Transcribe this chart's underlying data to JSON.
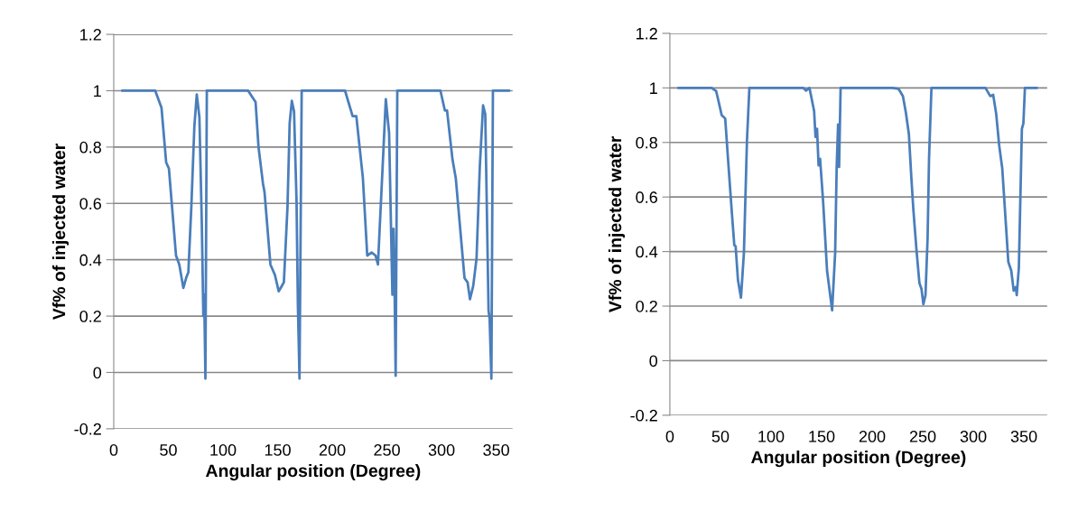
{
  "chart_data": [
    {
      "type": "line",
      "xlabel": "Angular position (Degree)",
      "ylabel": "Vf% of injected water",
      "xlim": [
        0,
        365
      ],
      "xticks": [
        0,
        50,
        100,
        150,
        200,
        250,
        300,
        350
      ],
      "ylim": [
        -0.2,
        1.2
      ],
      "yticks": [
        -0.2,
        0,
        0.2,
        0.4,
        0.6,
        0.8,
        1,
        1.2
      ],
      "grid": "y",
      "legend": false,
      "series": [
        {
          "color": "#4a7ebb",
          "x": [
            8,
            38,
            43.7,
            48,
            50.5,
            57,
            60,
            63.7,
            66.4,
            68.3,
            71,
            73.8,
            76,
            78.4,
            80.6,
            82,
            82.8,
            83.9,
            85.2,
            123,
            129.8,
            132.5,
            136.6,
            138,
            143.4,
            147.5,
            151,
            153.8,
            155.7,
            159,
            161,
            163,
            165,
            167.3,
            168.5,
            170,
            172,
            211.7,
            218.6,
            222,
            228,
            232,
            236,
            239.6,
            241.8,
            246,
            249,
            252,
            255,
            256,
            257,
            258,
            259.5,
            299,
            303,
            305,
            310,
            313,
            321,
            323.8,
            326,
            329,
            332,
            335,
            338,
            340,
            343,
            344,
            345.6,
            347,
            361.5
          ],
          "values": [
            1,
            1,
            0.94,
            0.745,
            0.724,
            0.415,
            0.383,
            0.3,
            0.337,
            0.356,
            0.586,
            0.874,
            0.987,
            0.906,
            0.53,
            0.2,
            0.276,
            -0.022,
            1,
            1,
            0.96,
            0.8,
            0.67,
            0.64,
            0.383,
            0.346,
            0.288,
            0.307,
            0.32,
            0.586,
            0.885,
            0.964,
            0.927,
            0.607,
            0.244,
            -0.022,
            1,
            1,
            0.91,
            0.91,
            0.69,
            0.415,
            0.426,
            0.415,
            0.383,
            0.724,
            0.97,
            0.85,
            0.276,
            0.51,
            0.3,
            -0.012,
            1,
            1,
            0.93,
            0.93,
            0.756,
            0.69,
            0.335,
            0.32,
            0.26,
            0.308,
            0.404,
            0.73,
            0.948,
            0.916,
            0.22,
            0.19,
            -0.022,
            1,
            1
          ]
        }
      ]
    },
    {
      "type": "line",
      "xlabel": "Angular position (Degree)",
      "ylabel": "Vf% of injected water",
      "xlim": [
        0,
        373
      ],
      "xticks": [
        0,
        50,
        100,
        150,
        200,
        250,
        300,
        350
      ],
      "ylim": [
        -0.2,
        1.2
      ],
      "yticks": [
        -0.2,
        0,
        0.2,
        0.4,
        0.6,
        0.8,
        1,
        1.2
      ],
      "grid": "y",
      "legend": false,
      "series": [
        {
          "color": "#4a7ebb",
          "x": [
            8.7,
            41.3,
            45.8,
            48.8,
            51.2,
            54.7,
            57.7,
            60.7,
            63.7,
            65,
            67.3,
            70.3,
            73.2,
            76.2,
            77,
            78.6,
            132,
            134.5,
            138,
            142.6,
            144,
            145.5,
            147,
            148.5,
            151.5,
            155.4,
            160.4,
            163.4,
            164.9,
            166.3,
            167.3,
            168.8,
            219.9,
            226,
            230.4,
            233.3,
            236.3,
            238.7,
            240.8,
            243.8,
            246.7,
            248.8,
            250.6,
            252.7,
            254.8,
            256.2,
            257,
            258.6,
            312,
            316.7,
            319.6,
            322.6,
            325.6,
            328.6,
            334.6,
            337.5,
            339.9,
            342,
            342.9,
            345,
            348,
            349.5,
            351,
            362.5
          ],
          "values": [
            1,
            1,
            0.988,
            0.94,
            0.9,
            0.888,
            0.728,
            0.572,
            0.423,
            0.42,
            0.296,
            0.231,
            0.395,
            0.805,
            0.87,
            1,
            1,
            0.99,
            1,
            0.915,
            0.82,
            0.85,
            0.716,
            0.74,
            0.584,
            0.33,
            0.185,
            0.395,
            0.71,
            0.866,
            0.71,
            1,
            1,
            0.997,
            0.97,
            0.91,
            0.83,
            0.672,
            0.55,
            0.406,
            0.285,
            0.262,
            0.207,
            0.24,
            0.45,
            0.738,
            0.827,
            1,
            1,
            0.97,
            0.975,
            0.905,
            0.788,
            0.705,
            0.362,
            0.33,
            0.257,
            0.27,
            0.24,
            0.34,
            0.85,
            0.87,
            1,
            1
          ]
        }
      ]
    }
  ]
}
